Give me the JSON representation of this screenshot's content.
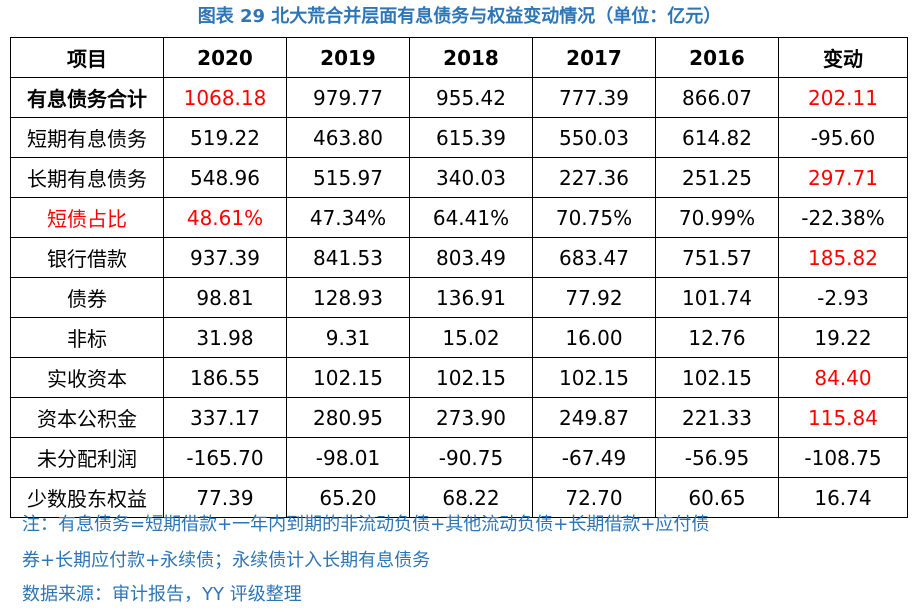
{
  "title": "图表 29 北大荒合并层面有息债务与权益变动情况（单位：亿元）",
  "table": {
    "headers": [
      "项目",
      "2020",
      "2019",
      "2018",
      "2017",
      "2016",
      "变动"
    ],
    "rows": [
      {
        "cells": [
          "有息债务合计",
          "1068.18",
          "979.77",
          "955.42",
          "777.39",
          "866.07",
          "202.11"
        ],
        "bold_label": true,
        "red": [
          1,
          6
        ]
      },
      {
        "cells": [
          "短期有息债务",
          "519.22",
          "463.80",
          "615.39",
          "550.03",
          "614.82",
          "-95.60"
        ],
        "bold_label": false,
        "red": []
      },
      {
        "cells": [
          "长期有息债务",
          "548.96",
          "515.97",
          "340.03",
          "227.36",
          "251.25",
          "297.71"
        ],
        "bold_label": false,
        "red": [
          6
        ]
      },
      {
        "cells": [
          "短债占比",
          "48.61%",
          "47.34%",
          "64.41%",
          "70.75%",
          "70.99%",
          "-22.38%"
        ],
        "bold_label": false,
        "red": [
          0,
          1
        ]
      },
      {
        "cells": [
          "银行借款",
          "937.39",
          "841.53",
          "803.49",
          "683.47",
          "751.57",
          "185.82"
        ],
        "bold_label": false,
        "red": [
          6
        ]
      },
      {
        "cells": [
          "债券",
          "98.81",
          "128.93",
          "136.91",
          "77.92",
          "101.74",
          "-2.93"
        ],
        "bold_label": false,
        "red": []
      },
      {
        "cells": [
          "非标",
          "31.98",
          "9.31",
          "15.02",
          "16.00",
          "12.76",
          "19.22"
        ],
        "bold_label": false,
        "red": []
      },
      {
        "cells": [
          "实收资本",
          "186.55",
          "102.15",
          "102.15",
          "102.15",
          "102.15",
          "84.40"
        ],
        "bold_label": false,
        "red": [
          6
        ]
      },
      {
        "cells": [
          "资本公积金",
          "337.17",
          "280.95",
          "273.90",
          "249.87",
          "221.33",
          "115.84"
        ],
        "bold_label": false,
        "red": [
          6
        ]
      },
      {
        "cells": [
          "未分配利润",
          "-165.70",
          "-98.01",
          "-90.75",
          "-67.49",
          "-56.95",
          "-108.75"
        ],
        "bold_label": false,
        "red": []
      },
      {
        "cells": [
          "少数股东权益",
          "77.39",
          "65.20",
          "68.22",
          "72.70",
          "60.65",
          "16.74"
        ],
        "bold_label": false,
        "red": []
      }
    ]
  },
  "notes": {
    "line1": "注：有息债务=短期借款+一年内到期的非流动负债+其他流动负债+长期借款+应付债",
    "line2": "券+长期应付款+永续债；永续债计入长期有息债务",
    "source": "数据来源：审计报告，YY 评级整理"
  },
  "colors": {
    "title_blue": "#2e75b6",
    "highlight_red": "#ff0000"
  }
}
